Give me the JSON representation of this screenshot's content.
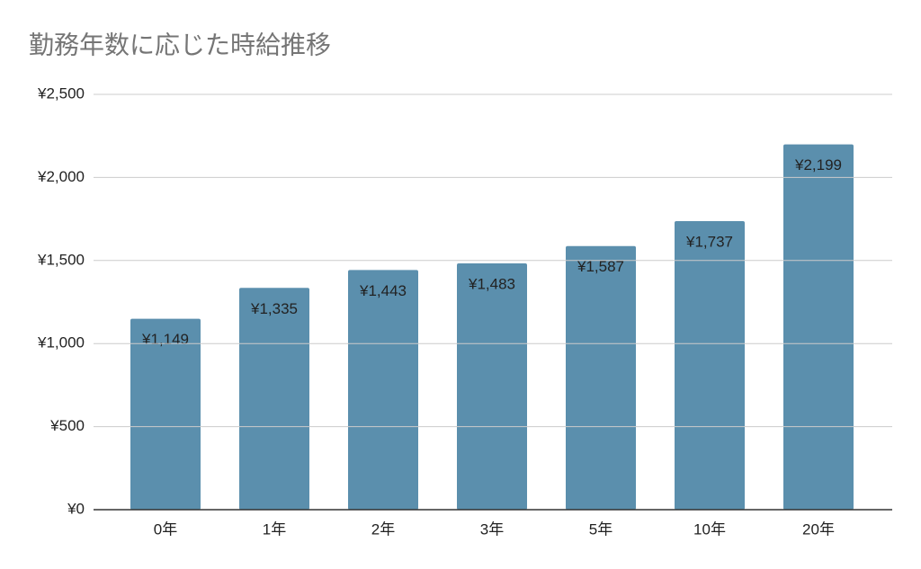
{
  "chart_data": {
    "type": "bar",
    "title": "勤務年数に応じた時給推移",
    "categories": [
      "0年",
      "1年",
      "2年",
      "3年",
      "5年",
      "10年",
      "20年"
    ],
    "values": [
      1149,
      1335,
      1443,
      1483,
      1587,
      1737,
      2199
    ],
    "value_labels": [
      "¥1,149",
      "¥1,335",
      "¥1,443",
      "¥1,483",
      "¥1,587",
      "¥1,737",
      "¥2,199"
    ],
    "color": "#5b8fad",
    "ylim": [
      0,
      2500
    ],
    "yticks": [
      {
        "value": 0,
        "label": "¥0"
      },
      {
        "value": 500,
        "label": "¥500"
      },
      {
        "value": 1000,
        "label": "¥1,000"
      },
      {
        "value": 1500,
        "label": "¥1,500"
      },
      {
        "value": 2000,
        "label": "¥2,000"
      },
      {
        "value": 2500,
        "label": "¥2,500"
      }
    ],
    "grid": true
  }
}
